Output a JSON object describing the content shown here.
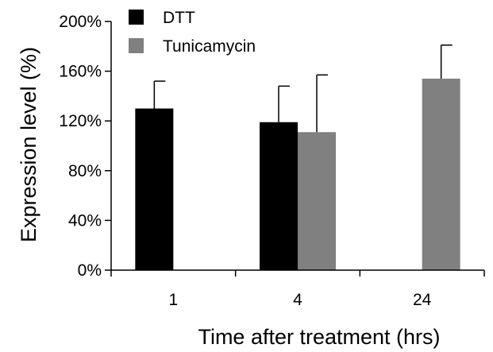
{
  "chart_data": {
    "type": "bar",
    "title": "",
    "xlabel": "Time after treatment (hrs)",
    "ylabel": "Expression level (%)",
    "categories": [
      "1",
      "4",
      "24"
    ],
    "ylim": [
      0,
      200
    ],
    "yticks": [
      0,
      40,
      80,
      120,
      160,
      200
    ],
    "ytick_labels": [
      "0%",
      "40%",
      "80%",
      "120%",
      "160%",
      "200%"
    ],
    "grid": false,
    "legend_position": "top-left",
    "series": [
      {
        "name": "DTT",
        "color": "#000000",
        "values": [
          130,
          119,
          null
        ],
        "errors": [
          22,
          29,
          null
        ]
      },
      {
        "name": "Tunicamycin",
        "color": "#808080",
        "values": [
          null,
          111,
          154
        ],
        "errors": [
          null,
          46,
          27
        ]
      }
    ]
  }
}
